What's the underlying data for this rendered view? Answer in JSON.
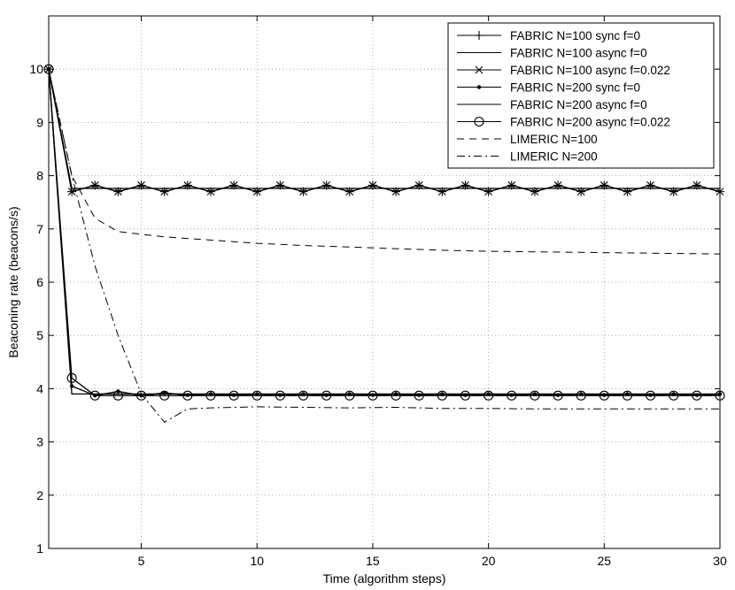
{
  "chart_data": {
    "type": "line",
    "title": "",
    "xlabel": "Time (algorithm steps)",
    "ylabel": "Beaconing rate (beacons/s)",
    "xlim": [
      1,
      30
    ],
    "ylim": [
      1,
      11
    ],
    "xticks": [
      5,
      10,
      15,
      20,
      25,
      30
    ],
    "yticks": [
      1,
      2,
      3,
      4,
      5,
      6,
      7,
      8,
      9,
      10
    ],
    "grid": true,
    "legend_position": "top-right",
    "series": [
      {
        "name": "FABRIC N=100 sync f=0",
        "line": "solid",
        "marker": "plus",
        "x": [
          1,
          2,
          3,
          4,
          5,
          6,
          7,
          8,
          9,
          10,
          11,
          12,
          13,
          14,
          15,
          16,
          17,
          18,
          19,
          20,
          21,
          22,
          23,
          24,
          25,
          26,
          27,
          28,
          29,
          30
        ],
        "y": [
          10,
          7.7,
          7.82,
          7.7,
          7.82,
          7.7,
          7.82,
          7.7,
          7.82,
          7.7,
          7.82,
          7.7,
          7.82,
          7.7,
          7.82,
          7.7,
          7.82,
          7.7,
          7.82,
          7.7,
          7.82,
          7.7,
          7.82,
          7.7,
          7.82,
          7.7,
          7.82,
          7.7,
          7.82,
          7.7
        ]
      },
      {
        "name": "FABRIC N=100 async f=0",
        "line": "solid",
        "marker": "none",
        "x": [
          1,
          2,
          30
        ],
        "y": [
          10,
          7.76,
          7.76
        ]
      },
      {
        "name": "FABRIC N=100 async f=0.022",
        "line": "solid",
        "marker": "x",
        "x": [
          1,
          2,
          3,
          4,
          5,
          6,
          7,
          8,
          9,
          10,
          11,
          12,
          13,
          14,
          15,
          16,
          17,
          18,
          19,
          20,
          21,
          22,
          23,
          24,
          25,
          26,
          27,
          28,
          29,
          30
        ],
        "y": [
          10,
          7.7,
          7.82,
          7.7,
          7.82,
          7.7,
          7.82,
          7.7,
          7.82,
          7.7,
          7.82,
          7.7,
          7.82,
          7.7,
          7.82,
          7.7,
          7.82,
          7.7,
          7.82,
          7.7,
          7.82,
          7.7,
          7.82,
          7.7,
          7.82,
          7.7,
          7.82,
          7.7,
          7.82,
          7.7
        ]
      },
      {
        "name": "FABRIC N=200 sync f=0",
        "line": "solid",
        "marker": "dot",
        "x": [
          1,
          2,
          3,
          4,
          5,
          6,
          7,
          8,
          9,
          10,
          11,
          12,
          13,
          14,
          15,
          16,
          17,
          18,
          19,
          20,
          21,
          22,
          23,
          24,
          25,
          26,
          27,
          28,
          29,
          30
        ],
        "y": [
          10,
          4.05,
          3.87,
          3.95,
          3.87,
          3.92,
          3.88,
          3.9,
          3.88,
          3.9,
          3.88,
          3.9,
          3.88,
          3.9,
          3.88,
          3.9,
          3.88,
          3.9,
          3.88,
          3.9,
          3.88,
          3.9,
          3.88,
          3.9,
          3.88,
          3.9,
          3.88,
          3.9,
          3.88,
          3.9
        ]
      },
      {
        "name": "FABRIC N=200 async f=0",
        "line": "solid",
        "marker": "none",
        "x": [
          1,
          2,
          30
        ],
        "y": [
          10,
          3.9,
          3.9
        ]
      },
      {
        "name": "FABRIC N=200 async f=0.022",
        "line": "solid",
        "marker": "circle",
        "x": [
          1,
          2,
          3,
          4,
          5,
          6,
          7,
          8,
          9,
          10,
          11,
          12,
          13,
          14,
          15,
          16,
          17,
          18,
          19,
          20,
          21,
          22,
          23,
          24,
          25,
          26,
          27,
          28,
          29,
          30
        ],
        "y": [
          10,
          4.2,
          3.87,
          3.87,
          3.87,
          3.87,
          3.87,
          3.87,
          3.87,
          3.87,
          3.87,
          3.87,
          3.87,
          3.87,
          3.87,
          3.87,
          3.87,
          3.87,
          3.87,
          3.87,
          3.87,
          3.87,
          3.87,
          3.87,
          3.87,
          3.87,
          3.87,
          3.87,
          3.87,
          3.87
        ]
      },
      {
        "name": "LIMERIC N=100",
        "line": "dashed",
        "marker": "none",
        "x": [
          1,
          2,
          3,
          4,
          5,
          6,
          7,
          8,
          9,
          10,
          12,
          14,
          16,
          18,
          20,
          22,
          24,
          26,
          28,
          30
        ],
        "y": [
          10,
          8.0,
          7.2,
          6.95,
          6.9,
          6.85,
          6.82,
          6.79,
          6.76,
          6.73,
          6.69,
          6.66,
          6.63,
          6.6,
          6.58,
          6.57,
          6.56,
          6.55,
          6.54,
          6.53
        ]
      },
      {
        "name": "LIMERIC N=200",
        "line": "dashdot",
        "marker": "none",
        "x": [
          1,
          2,
          3,
          4,
          5,
          6,
          7,
          8,
          9,
          10,
          12,
          14,
          16,
          18,
          20,
          22,
          24,
          26,
          28,
          30
        ],
        "y": [
          10,
          8.0,
          6.3,
          5.0,
          3.9,
          3.37,
          3.62,
          3.64,
          3.65,
          3.66,
          3.65,
          3.64,
          3.65,
          3.63,
          3.63,
          3.62,
          3.62,
          3.62,
          3.62,
          3.62
        ]
      }
    ]
  }
}
